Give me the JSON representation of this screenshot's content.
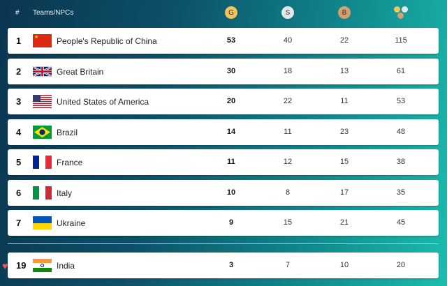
{
  "header": {
    "rank": "#",
    "team": "Teams/NPCs",
    "gold": "G",
    "silver": "S",
    "bronze": "B"
  },
  "colors": {
    "gold": "#f2c45a",
    "silver": "#e4e8ec",
    "bronze": "#d4a070"
  },
  "rows": [
    {
      "rank": "1",
      "name": "People's Republic of China",
      "flag": "china",
      "gold": "53",
      "silver": "40",
      "bronze": "22",
      "total": "115"
    },
    {
      "rank": "2",
      "name": "Great Britain",
      "flag": "uk",
      "gold": "30",
      "silver": "18",
      "bronze": "13",
      "total": "61"
    },
    {
      "rank": "3",
      "name": "United States of America",
      "flag": "usa",
      "gold": "20",
      "silver": "22",
      "bronze": "11",
      "total": "53"
    },
    {
      "rank": "4",
      "name": "Brazil",
      "flag": "brazil",
      "gold": "14",
      "silver": "11",
      "bronze": "23",
      "total": "48"
    },
    {
      "rank": "5",
      "name": "France",
      "flag": "france",
      "gold": "11",
      "silver": "12",
      "bronze": "15",
      "total": "38"
    },
    {
      "rank": "6",
      "name": "Italy",
      "flag": "italy",
      "gold": "10",
      "silver": "8",
      "bronze": "17",
      "total": "35"
    },
    {
      "rank": "7",
      "name": "Ukraine",
      "flag": "ukraine",
      "gold": "9",
      "silver": "15",
      "bronze": "21",
      "total": "45"
    }
  ],
  "favorite": {
    "rank": "19",
    "name": "India",
    "flag": "india",
    "gold": "3",
    "silver": "7",
    "bronze": "10",
    "total": "20"
  }
}
